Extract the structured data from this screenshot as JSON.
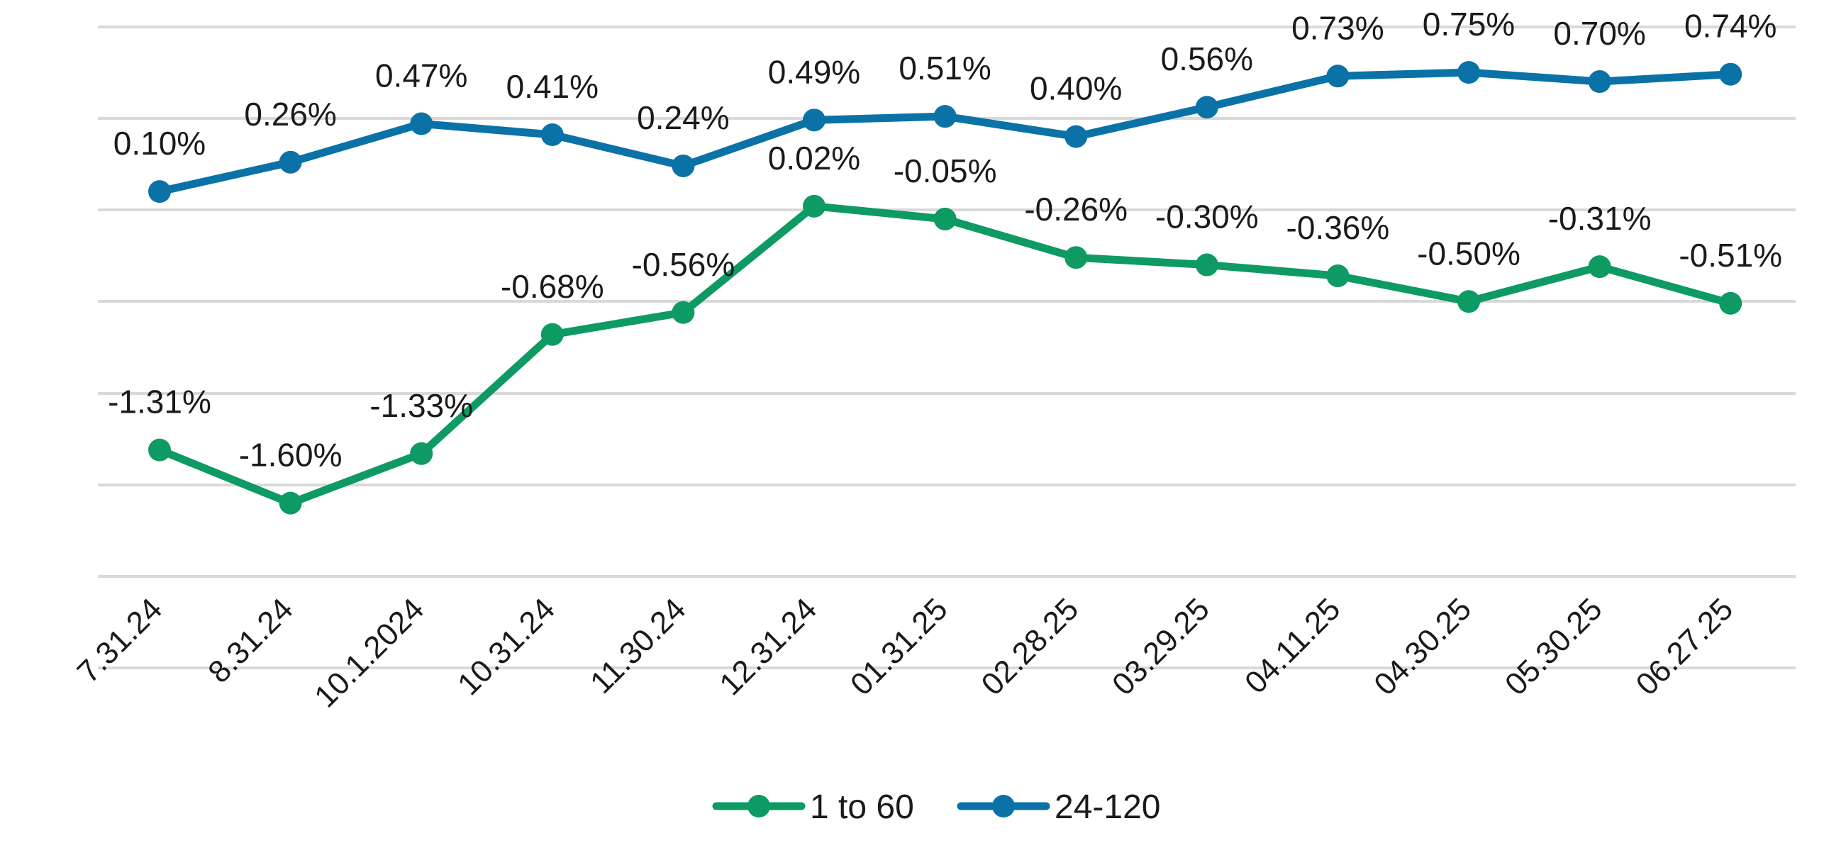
{
  "chart_data": {
    "type": "line",
    "title": "",
    "xlabel": "",
    "ylabel": "",
    "categories": [
      "7.31.24",
      "8.31.24",
      "10.1.2024",
      "10.31.24",
      "11.30.24",
      "12.31.24",
      "01.31.25",
      "02.28.25",
      "03.29.25",
      "04.11.25",
      "04.30.25",
      "05.30.25",
      "06.27.25"
    ],
    "ylim": [
      -2.5,
      1.0
    ],
    "grid": true,
    "legend_position": "bottom",
    "series": [
      {
        "name": "1 to 60",
        "color": "#0e9a63",
        "values": [
          -1.31,
          -1.6,
          -1.33,
          -0.68,
          -0.56,
          0.02,
          -0.05,
          -0.26,
          -0.3,
          -0.36,
          -0.5,
          -0.31,
          -0.51
        ],
        "labels": [
          "-1.31%",
          "-1.60%",
          "-1.33%",
          "-0.68%",
          "-0.56%",
          "0.02%",
          "-0.05%",
          "-0.26%",
          "-0.30%",
          "-0.36%",
          "-0.50%",
          "-0.31%",
          "-0.51%"
        ]
      },
      {
        "name": "24-120",
        "color": "#0a72a6",
        "values": [
          0.1,
          0.26,
          0.47,
          0.41,
          0.24,
          0.49,
          0.51,
          0.4,
          0.56,
          0.73,
          0.75,
          0.7,
          0.74
        ],
        "labels": [
          "0.10%",
          "0.26%",
          "0.47%",
          "0.41%",
          "0.24%",
          "0.49%",
          "0.51%",
          "0.40%",
          "0.56%",
          "0.73%",
          "0.75%",
          "0.70%",
          "0.74%"
        ]
      }
    ]
  }
}
